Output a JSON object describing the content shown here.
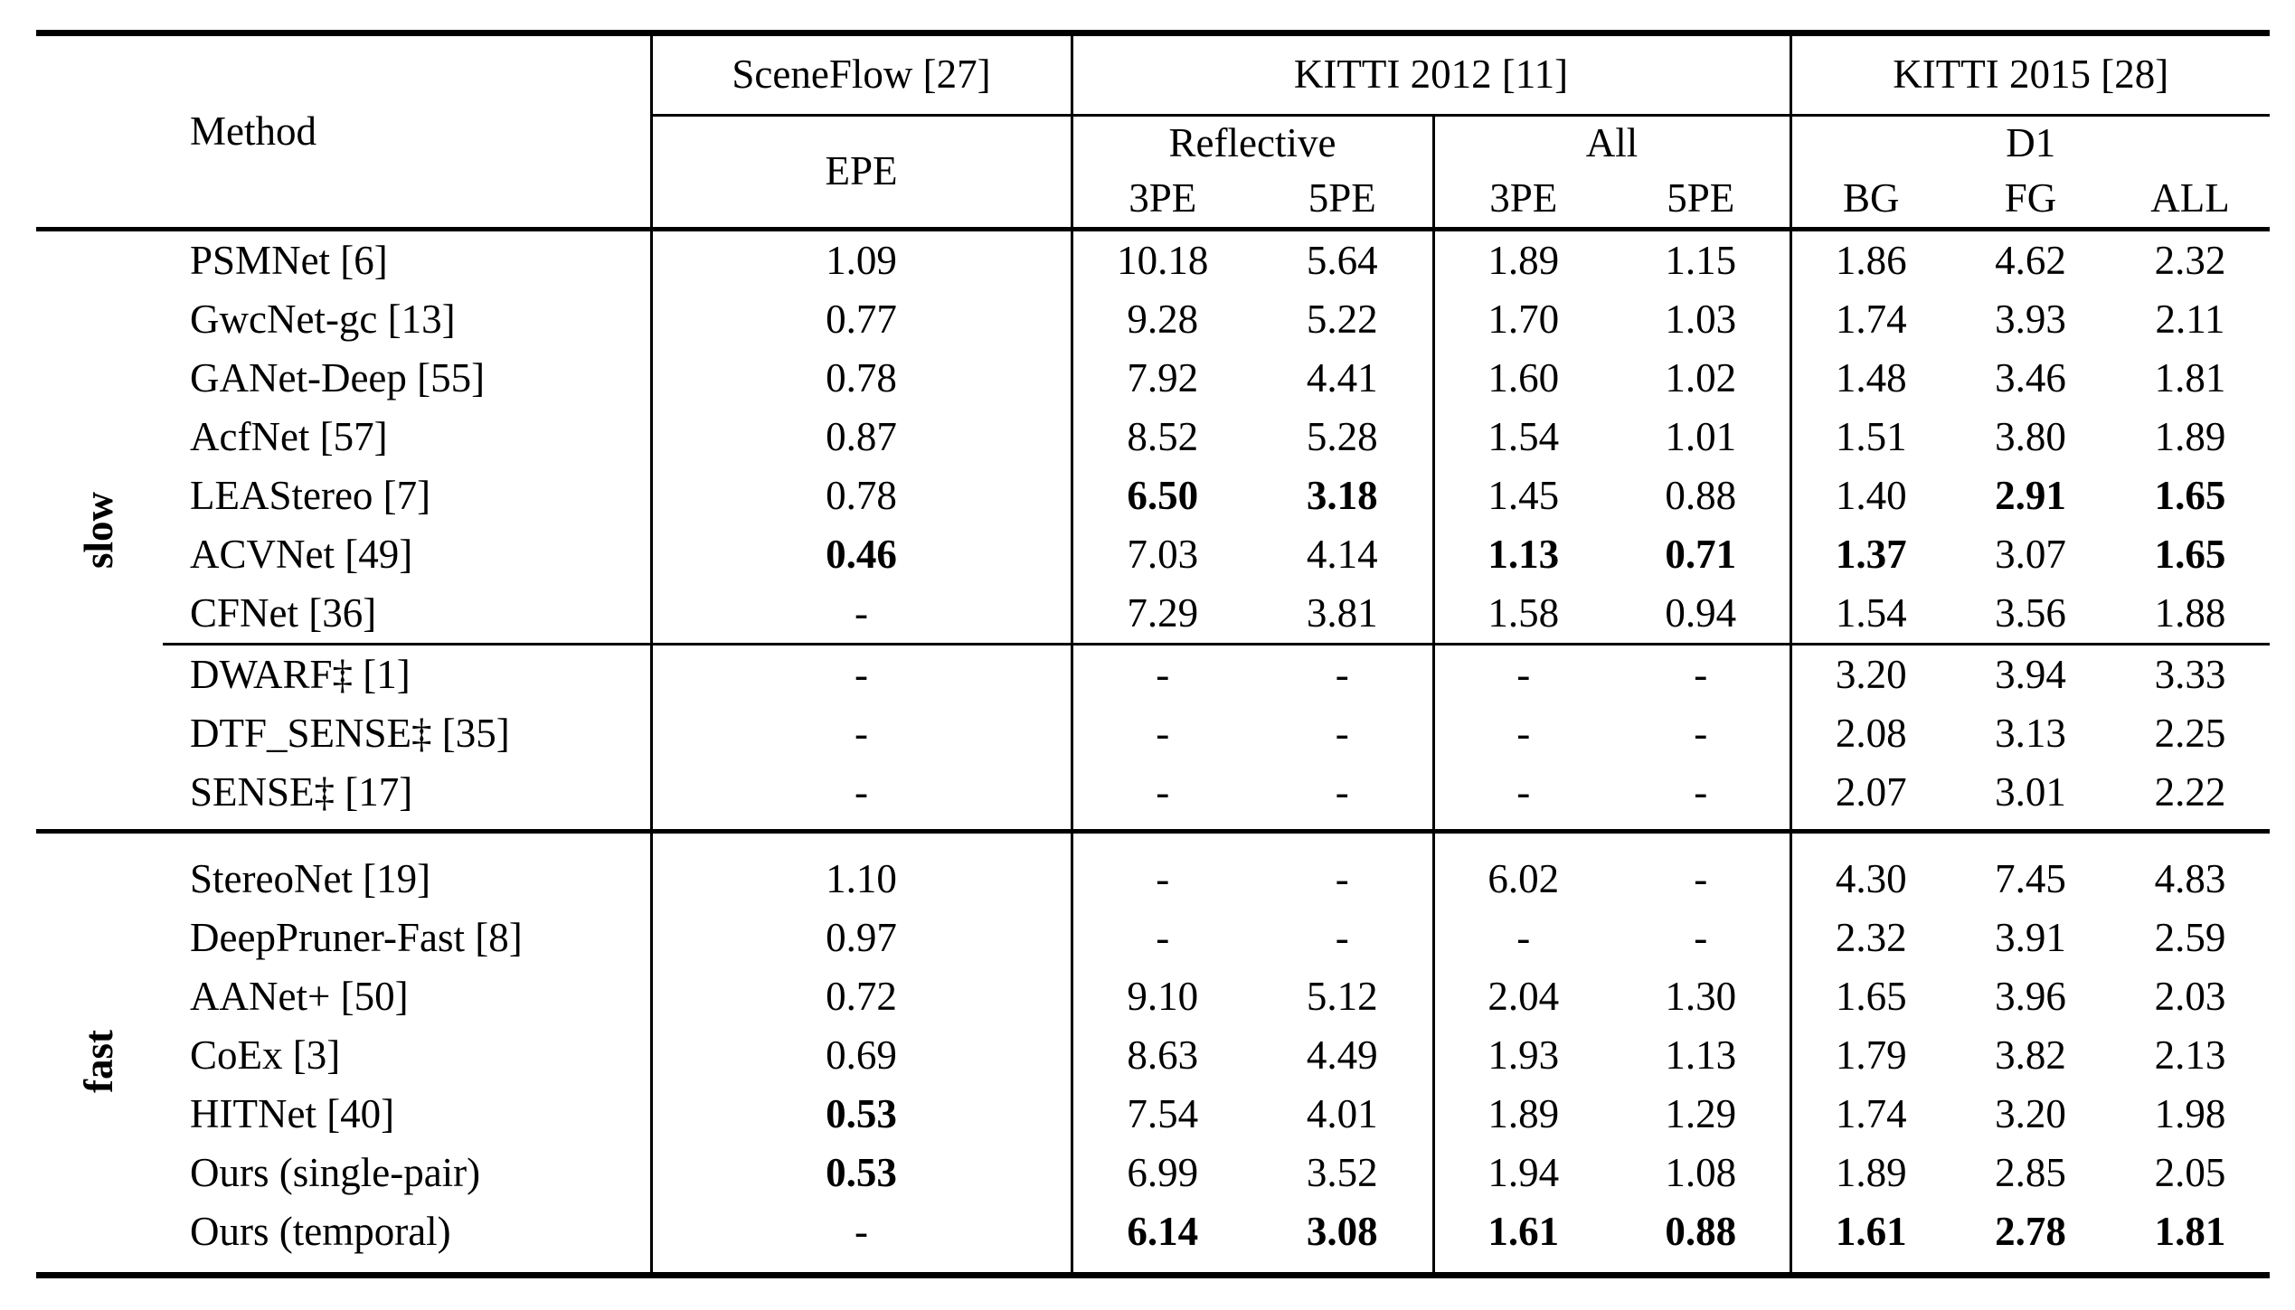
{
  "header": {
    "method": "Method",
    "sceneflow": "SceneFlow [27]",
    "sceneflow_sub": "EPE",
    "kitti2012": "KITTI 2012 [11]",
    "kitti2012_groups": [
      {
        "label": "Reflective",
        "cols": [
          "3PE",
          "5PE"
        ]
      },
      {
        "label": "All",
        "cols": [
          "3PE",
          "5PE"
        ]
      }
    ],
    "kitti2015": "KITTI 2015 [28]",
    "kitti2015_group": "D1",
    "kitti2015_cols": [
      "BG",
      "FG",
      "ALL"
    ]
  },
  "groups": [
    {
      "label": "slow",
      "rows": [
        {
          "method": "PSMNet [6]",
          "values": [
            "1.09",
            "10.18",
            "5.64",
            "1.89",
            "1.15",
            "1.86",
            "4.62",
            "2.32"
          ],
          "bold": [
            0,
            0,
            0,
            0,
            0,
            0,
            0,
            0
          ]
        },
        {
          "method": "GwcNet-gc [13]",
          "values": [
            "0.77",
            "9.28",
            "5.22",
            "1.70",
            "1.03",
            "1.74",
            "3.93",
            "2.11"
          ],
          "bold": [
            0,
            0,
            0,
            0,
            0,
            0,
            0,
            0
          ]
        },
        {
          "method": "GANet-Deep [55]",
          "values": [
            "0.78",
            "7.92",
            "4.41",
            "1.60",
            "1.02",
            "1.48",
            "3.46",
            "1.81"
          ],
          "bold": [
            0,
            0,
            0,
            0,
            0,
            0,
            0,
            0
          ]
        },
        {
          "method": "AcfNet [57]",
          "values": [
            "0.87",
            "8.52",
            "5.28",
            "1.54",
            "1.01",
            "1.51",
            "3.80",
            "1.89"
          ],
          "bold": [
            0,
            0,
            0,
            0,
            0,
            0,
            0,
            0
          ]
        },
        {
          "method": "LEAStereo [7]",
          "values": [
            "0.78",
            "6.50",
            "3.18",
            "1.45",
            "0.88",
            "1.40",
            "2.91",
            "1.65"
          ],
          "bold": [
            0,
            1,
            1,
            0,
            0,
            0,
            1,
            1
          ]
        },
        {
          "method": "ACVNet [49]",
          "values": [
            "0.46",
            "7.03",
            "4.14",
            "1.13",
            "0.71",
            "1.37",
            "3.07",
            "1.65"
          ],
          "bold": [
            1,
            0,
            0,
            1,
            1,
            1,
            0,
            1
          ]
        },
        {
          "method": "CFNet [36]",
          "values": [
            "-",
            "7.29",
            "3.81",
            "1.58",
            "0.94",
            "1.54",
            "3.56",
            "1.88"
          ],
          "bold": [
            0,
            0,
            0,
            0,
            0,
            0,
            0,
            0
          ]
        },
        {
          "method": "DWARF‡ [1]",
          "values": [
            "-",
            "-",
            "-",
            "-",
            "-",
            "3.20",
            "3.94",
            "3.33"
          ],
          "bold": [
            0,
            0,
            0,
            0,
            0,
            0,
            0,
            0
          ],
          "rule_above": true
        },
        {
          "method": "DTF_SENSE‡ [35]",
          "values": [
            "-",
            "-",
            "-",
            "-",
            "-",
            "2.08",
            "3.13",
            "2.25"
          ],
          "bold": [
            0,
            0,
            0,
            0,
            0,
            0,
            0,
            0
          ]
        },
        {
          "method": "SENSE‡ [17]",
          "values": [
            "-",
            "-",
            "-",
            "-",
            "-",
            "2.07",
            "3.01",
            "2.22"
          ],
          "bold": [
            0,
            0,
            0,
            0,
            0,
            0,
            0,
            0
          ]
        }
      ]
    },
    {
      "label": "fast",
      "rows": [
        {
          "method": "StereoNet [19]",
          "values": [
            "1.10",
            "-",
            "-",
            "6.02",
            "-",
            "4.30",
            "7.45",
            "4.83"
          ],
          "bold": [
            0,
            0,
            0,
            0,
            0,
            0,
            0,
            0
          ]
        },
        {
          "method": "DeepPruner-Fast [8]",
          "values": [
            "0.97",
            "-",
            "-",
            "-",
            "-",
            "2.32",
            "3.91",
            "2.59"
          ],
          "bold": [
            0,
            0,
            0,
            0,
            0,
            0,
            0,
            0
          ]
        },
        {
          "method": "AANet+ [50]",
          "values": [
            "0.72",
            "9.10",
            "5.12",
            "2.04",
            "1.30",
            "1.65",
            "3.96",
            "2.03"
          ],
          "bold": [
            0,
            0,
            0,
            0,
            0,
            0,
            0,
            0
          ]
        },
        {
          "method": "CoEx [3]",
          "values": [
            "0.69",
            "8.63",
            "4.49",
            "1.93",
            "1.13",
            "1.79",
            "3.82",
            "2.13"
          ],
          "bold": [
            0,
            0,
            0,
            0,
            0,
            0,
            0,
            0
          ]
        },
        {
          "method": "HITNet [40]",
          "values": [
            "0.53",
            "7.54",
            "4.01",
            "1.89",
            "1.29",
            "1.74",
            "3.20",
            "1.98"
          ],
          "bold": [
            1,
            0,
            0,
            0,
            0,
            0,
            0,
            0
          ]
        },
        {
          "method": "Ours (single-pair)",
          "values": [
            "0.53",
            "6.99",
            "3.52",
            "1.94",
            "1.08",
            "1.89",
            "2.85",
            "2.05"
          ],
          "bold": [
            1,
            0,
            0,
            0,
            0,
            0,
            0,
            0
          ]
        },
        {
          "method": "Ours (temporal)",
          "values": [
            "-",
            "6.14",
            "3.08",
            "1.61",
            "0.88",
            "1.61",
            "2.78",
            "1.81"
          ],
          "bold": [
            0,
            1,
            1,
            1,
            1,
            1,
            1,
            1
          ]
        }
      ]
    }
  ]
}
